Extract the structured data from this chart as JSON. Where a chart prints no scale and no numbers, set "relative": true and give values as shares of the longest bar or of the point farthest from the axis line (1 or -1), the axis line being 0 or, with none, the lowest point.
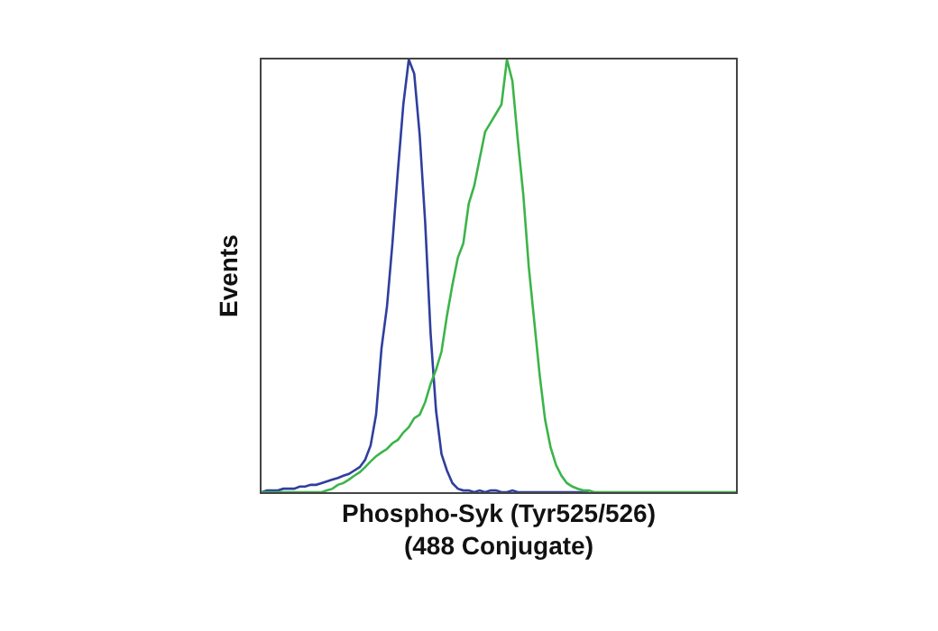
{
  "chart_data": {
    "type": "line",
    "relative": true,
    "xlabel": "Phospho-Syk (Tyr525/526)\n(488 Conjugate)",
    "ylabel": "Events",
    "tick_labels": false,
    "marker": "none",
    "line_style": "solid",
    "categories": [
      null,
      null,
      null,
      null,
      null,
      null,
      null,
      null,
      null,
      null,
      null,
      null,
      null,
      null,
      null,
      null,
      null,
      null,
      null,
      null,
      null,
      null,
      null,
      null,
      null,
      null,
      null,
      null,
      null,
      null,
      null,
      null,
      null,
      null,
      null,
      null,
      null,
      null,
      null,
      null,
      null,
      null,
      null,
      null,
      null,
      null,
      null,
      null,
      null,
      null,
      null,
      null,
      null,
      null,
      null,
      null,
      null,
      null,
      null,
      null,
      null,
      null,
      null,
      null,
      null,
      null,
      null,
      null,
      null,
      null,
      null,
      null,
      null,
      null,
      null,
      null,
      null,
      null,
      null,
      null,
      null,
      null,
      null,
      null,
      null,
      null,
      null,
      null
    ],
    "series": [
      {
        "color": "#2e3f9e",
        "values": [
          0,
          0.004,
          0.004,
          0.004,
          0.008,
          0.008,
          0.008,
          0.013,
          0.013,
          0.017,
          0.017,
          0.021,
          0.025,
          0.029,
          0.033,
          0.038,
          0.042,
          0.05,
          0.058,
          0.075,
          0.108,
          0.179,
          0.333,
          0.429,
          0.575,
          0.742,
          0.896,
          1,
          0.967,
          0.825,
          0.625,
          0.367,
          0.188,
          0.088,
          0.05,
          0.021,
          0.008,
          0.004,
          0.004,
          0,
          0.004,
          0,
          0.004,
          0.004,
          0,
          0,
          0.004,
          0,
          0,
          0,
          0,
          0,
          0,
          0,
          0,
          0,
          0,
          0,
          0,
          0,
          0,
          null,
          null,
          null,
          null,
          null,
          null,
          null,
          null,
          null,
          null,
          null,
          null,
          null,
          null,
          null,
          null,
          null,
          null,
          null,
          null,
          null,
          null,
          null,
          null,
          null,
          null,
          null
        ]
      },
      {
        "color": "#3cb44a",
        "values": [
          0,
          0,
          0,
          0,
          0,
          0,
          0,
          0,
          0,
          0,
          0,
          0,
          0.004,
          0.008,
          0.017,
          0.021,
          0.029,
          0.038,
          0.046,
          0.058,
          0.071,
          0.083,
          0.092,
          0.1,
          0.113,
          0.121,
          0.138,
          0.15,
          0.171,
          0.179,
          0.208,
          0.25,
          0.283,
          0.325,
          0.408,
          0.479,
          0.542,
          0.575,
          0.667,
          0.708,
          0.771,
          0.833,
          0.854,
          0.875,
          0.896,
          1,
          0.95,
          0.813,
          0.688,
          0.521,
          0.396,
          0.271,
          0.167,
          0.104,
          0.063,
          0.038,
          0.021,
          0.013,
          0.008,
          0.004,
          0.004,
          0,
          0,
          0,
          0,
          0,
          0,
          0,
          0,
          0,
          0,
          0,
          0,
          0,
          0,
          0,
          0,
          0,
          0,
          0,
          0,
          0,
          0,
          0,
          0,
          0,
          0,
          0
        ]
      }
    ]
  }
}
